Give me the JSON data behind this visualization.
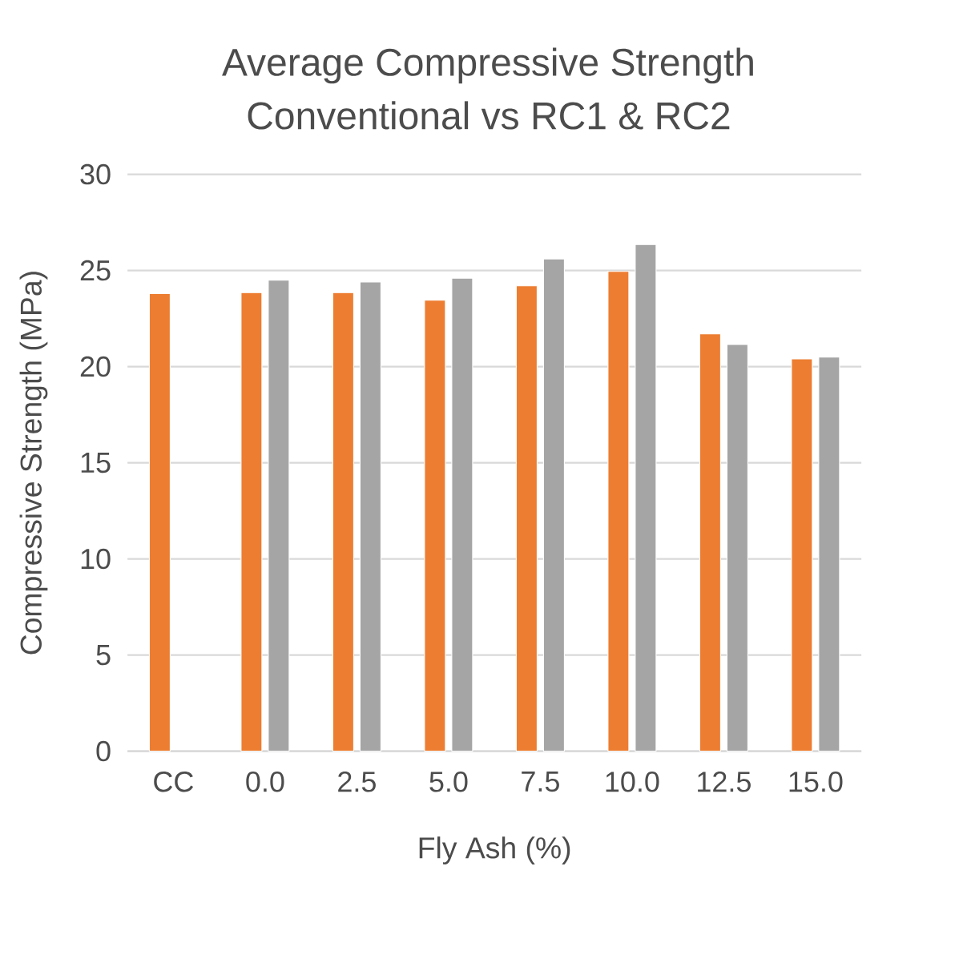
{
  "chart_data": {
    "type": "bar",
    "title": "Average Compressive Strength",
    "subtitle": "Conventional vs RC1 & RC2",
    "xlabel": "Fly Ash (%)",
    "ylabel": "Compressive Strength (MPa)",
    "categories": [
      "CC",
      "0.0",
      "2.5",
      "5.0",
      "7.5",
      "10.0",
      "12.5",
      "15.0"
    ],
    "series": [
      {
        "color": "#ed7d31",
        "values": [
          23.8,
          23.85,
          23.85,
          23.45,
          24.2,
          24.95,
          21.7,
          20.4
        ]
      },
      {
        "color": "#a5a5a5",
        "values": [
          null,
          24.5,
          24.4,
          24.6,
          25.6,
          26.35,
          21.15,
          20.5
        ]
      }
    ],
    "ylim": [
      0,
      30
    ],
    "yticks": [
      0,
      5,
      10,
      15,
      20,
      25,
      30
    ],
    "grid": "y",
    "legend": false
  }
}
